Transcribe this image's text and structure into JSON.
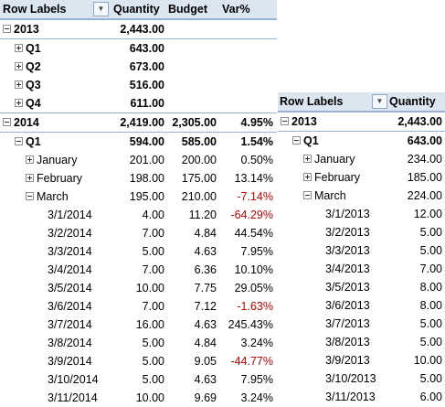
{
  "left": {
    "headers": {
      "row_labels": "Row Labels",
      "quantity": "Quantity",
      "budget": "Budget",
      "var": "Var%"
    },
    "rows": [
      {
        "level": 0,
        "label": "2013",
        "quantity": "2,443.00",
        "budget": "",
        "var": "",
        "expander": "minus"
      },
      {
        "level": 1,
        "label": "Q1",
        "quantity": "643.00",
        "budget": "",
        "var": "",
        "expander": "plus"
      },
      {
        "level": 1,
        "label": "Q2",
        "quantity": "673.00",
        "budget": "",
        "var": "",
        "expander": "plus"
      },
      {
        "level": 1,
        "label": "Q3",
        "quantity": "516.00",
        "budget": "",
        "var": "",
        "expander": "plus"
      },
      {
        "level": 1,
        "label": "Q4",
        "quantity": "611.00",
        "budget": "",
        "var": "",
        "expander": "plus"
      },
      {
        "level": 0,
        "label": "2014",
        "quantity": "2,419.00",
        "budget": "2,305.00",
        "var": "4.95%",
        "expander": "minus"
      },
      {
        "level": 1,
        "label": "Q1",
        "quantity": "594.00",
        "budget": "585.00",
        "var": "1.54%",
        "expander": "minus"
      },
      {
        "level": 2,
        "label": "January",
        "quantity": "201.00",
        "budget": "200.00",
        "var": "0.50%",
        "expander": "plus"
      },
      {
        "level": 2,
        "label": "February",
        "quantity": "198.00",
        "budget": "175.00",
        "var": "13.14%",
        "expander": "plus"
      },
      {
        "level": 2,
        "label": "March",
        "quantity": "195.00",
        "budget": "210.00",
        "var": "-7.14%",
        "expander": "minus",
        "negative": true
      },
      {
        "level": 3,
        "label": "3/1/2014",
        "quantity": "4.00",
        "budget": "11.20",
        "var": "-64.29%",
        "negative": true
      },
      {
        "level": 3,
        "label": "3/2/2014",
        "quantity": "7.00",
        "budget": "4.84",
        "var": "44.54%"
      },
      {
        "level": 3,
        "label": "3/3/2014",
        "quantity": "5.00",
        "budget": "4.63",
        "var": "7.95%"
      },
      {
        "level": 3,
        "label": "3/4/2014",
        "quantity": "7.00",
        "budget": "6.36",
        "var": "10.10%"
      },
      {
        "level": 3,
        "label": "3/5/2014",
        "quantity": "10.00",
        "budget": "7.75",
        "var": "29.05%"
      },
      {
        "level": 3,
        "label": "3/6/2014",
        "quantity": "7.00",
        "budget": "7.12",
        "var": "-1.63%",
        "negative": true
      },
      {
        "level": 3,
        "label": "3/7/2014",
        "quantity": "16.00",
        "budget": "4.63",
        "var": "245.43%"
      },
      {
        "level": 3,
        "label": "3/8/2014",
        "quantity": "5.00",
        "budget": "4.84",
        "var": "3.24%"
      },
      {
        "level": 3,
        "label": "3/9/2014",
        "quantity": "5.00",
        "budget": "9.05",
        "var": "-44.77%",
        "negative": true
      },
      {
        "level": 3,
        "label": "3/10/2014",
        "quantity": "5.00",
        "budget": "4.63",
        "var": "7.95%"
      },
      {
        "level": 3,
        "label": "3/11/2014",
        "quantity": "10.00",
        "budget": "9.69",
        "var": "3.24%"
      }
    ]
  },
  "right": {
    "headers": {
      "row_labels": "Row Labels",
      "quantity": "Quantity"
    },
    "rows": [
      {
        "level": 0,
        "label": "2013",
        "quantity": "2,443.00",
        "expander": "minus"
      },
      {
        "level": 1,
        "label": "Q1",
        "quantity": "643.00",
        "expander": "minus"
      },
      {
        "level": 2,
        "label": "January",
        "quantity": "234.00",
        "expander": "plus"
      },
      {
        "level": 2,
        "label": "February",
        "quantity": "185.00",
        "expander": "plus"
      },
      {
        "level": 2,
        "label": "March",
        "quantity": "224.00",
        "expander": "minus"
      },
      {
        "level": 3,
        "label": "3/1/2013",
        "quantity": "12.00"
      },
      {
        "level": 3,
        "label": "3/2/2013",
        "quantity": "5.00"
      },
      {
        "level": 3,
        "label": "3/3/2013",
        "quantity": "5.00"
      },
      {
        "level": 3,
        "label": "3/4/2013",
        "quantity": "7.00"
      },
      {
        "level": 3,
        "label": "3/5/2013",
        "quantity": "8.00"
      },
      {
        "level": 3,
        "label": "3/6/2013",
        "quantity": "8.00"
      },
      {
        "level": 3,
        "label": "3/7/2013",
        "quantity": "5.00"
      },
      {
        "level": 3,
        "label": "3/8/2013",
        "quantity": "5.00"
      },
      {
        "level": 3,
        "label": "3/9/2013",
        "quantity": "10.00"
      },
      {
        "level": 3,
        "label": "3/10/2013",
        "quantity": "5.00"
      },
      {
        "level": 3,
        "label": "3/11/2013",
        "quantity": "6.00"
      }
    ]
  },
  "icons": {
    "filter_dropdown": "filter-dropdown-icon"
  },
  "colors": {
    "header_bg": "#dce6f1",
    "border": "#95b3d7",
    "negative": "#c00000"
  }
}
